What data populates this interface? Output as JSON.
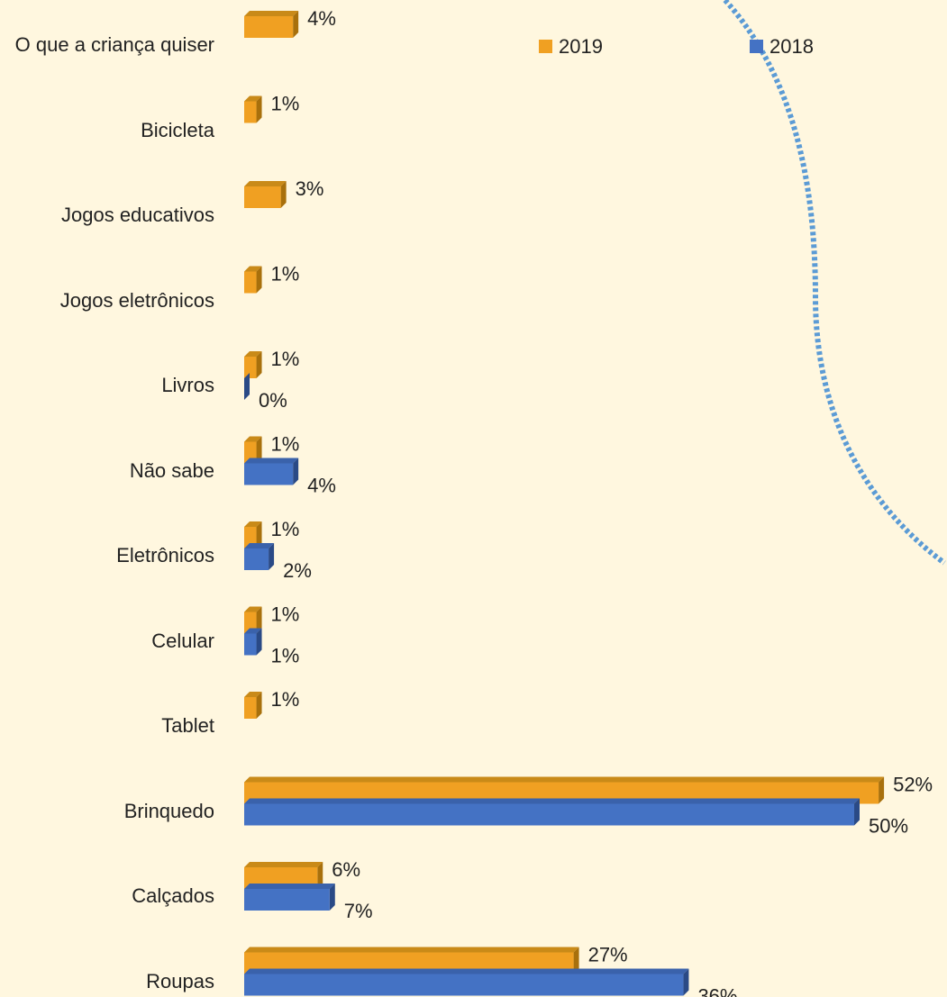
{
  "chart_data": {
    "type": "bar3d_horizontal",
    "categories": [
      "O que a criança quiser",
      "Bicicleta",
      "Jogos educativos",
      "Jogos eletrônicos",
      "Livros",
      "Não sabe",
      "Eletrônicos",
      "Celular",
      "Tablet",
      "Brinquedo",
      "Calçados",
      "Roupas"
    ],
    "series": [
      {
        "name": "2019",
        "color": "#f0a022",
        "values": [
          4,
          1,
          3,
          1,
          1,
          1,
          1,
          1,
          1,
          52,
          6,
          27
        ],
        "value_labels": [
          "4%",
          "1%",
          "3%",
          "1%",
          "1%",
          "1%",
          "1%",
          "1%",
          "1%",
          "52%",
          "6%",
          "27%"
        ]
      },
      {
        "name": "2018",
        "color": "#4472c4",
        "values": [
          null,
          null,
          null,
          null,
          0,
          4,
          2,
          1,
          null,
          50,
          7,
          36
        ],
        "value_labels": [
          null,
          null,
          null,
          null,
          "0%",
          "4%",
          "2%",
          "1%",
          null,
          "50%",
          "7%",
          "36%"
        ]
      }
    ],
    "legend": "top"
  }
}
